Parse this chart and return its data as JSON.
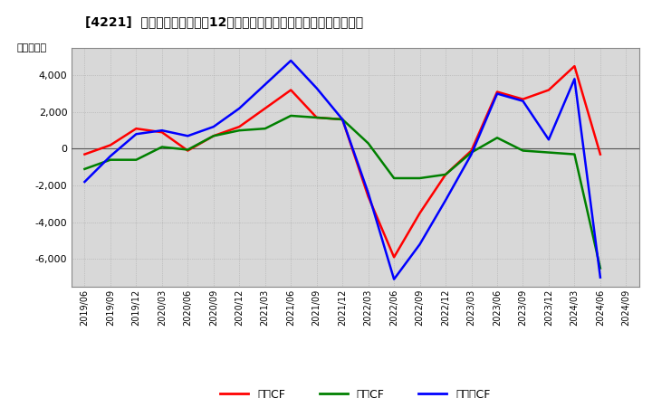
{
  "title": "[4221]  キャッシュフローの12か月移動合計の対前年同期増減額の推移",
  "ylabel": "（百万円）",
  "legend": [
    "営業CF",
    "投賄CF",
    "フリーCF"
  ],
  "colors": [
    "#ff0000",
    "#008000",
    "#0000ff"
  ],
  "x_labels": [
    "2019/06",
    "2019/09",
    "2019/12",
    "2020/03",
    "2020/06",
    "2020/09",
    "2020/12",
    "2021/03",
    "2021/06",
    "2021/09",
    "2021/12",
    "2022/03",
    "2022/06",
    "2022/09",
    "2022/12",
    "2023/03",
    "2023/06",
    "2023/09",
    "2023/12",
    "2024/03",
    "2024/06",
    "2024/09"
  ],
  "operating_cf": [
    -300,
    200,
    1100,
    900,
    -100,
    700,
    1200,
    2200,
    3200,
    1700,
    1600,
    -2600,
    -5900,
    -3500,
    -1400,
    -100,
    3100,
    2700,
    3200,
    4500,
    -300,
    null
  ],
  "investing_cf": [
    -1100,
    -600,
    -600,
    100,
    -50,
    700,
    1000,
    1100,
    1800,
    1700,
    1600,
    300,
    -1600,
    -1600,
    -1400,
    -200,
    600,
    -100,
    -200,
    -300,
    -6500,
    null
  ],
  "free_cf": [
    -1800,
    -400,
    800,
    1000,
    700,
    1200,
    2200,
    3500,
    4800,
    3300,
    1600,
    -2400,
    -7100,
    -5200,
    -2800,
    -300,
    3000,
    2600,
    500,
    3800,
    -7000,
    null
  ],
  "ylim": [
    -7500,
    5500
  ],
  "yticks": [
    -6000,
    -4000,
    -2000,
    0,
    2000,
    4000
  ],
  "bg_color": "#d8d8d8",
  "fig_color": "#ffffff",
  "line_width": 1.8
}
